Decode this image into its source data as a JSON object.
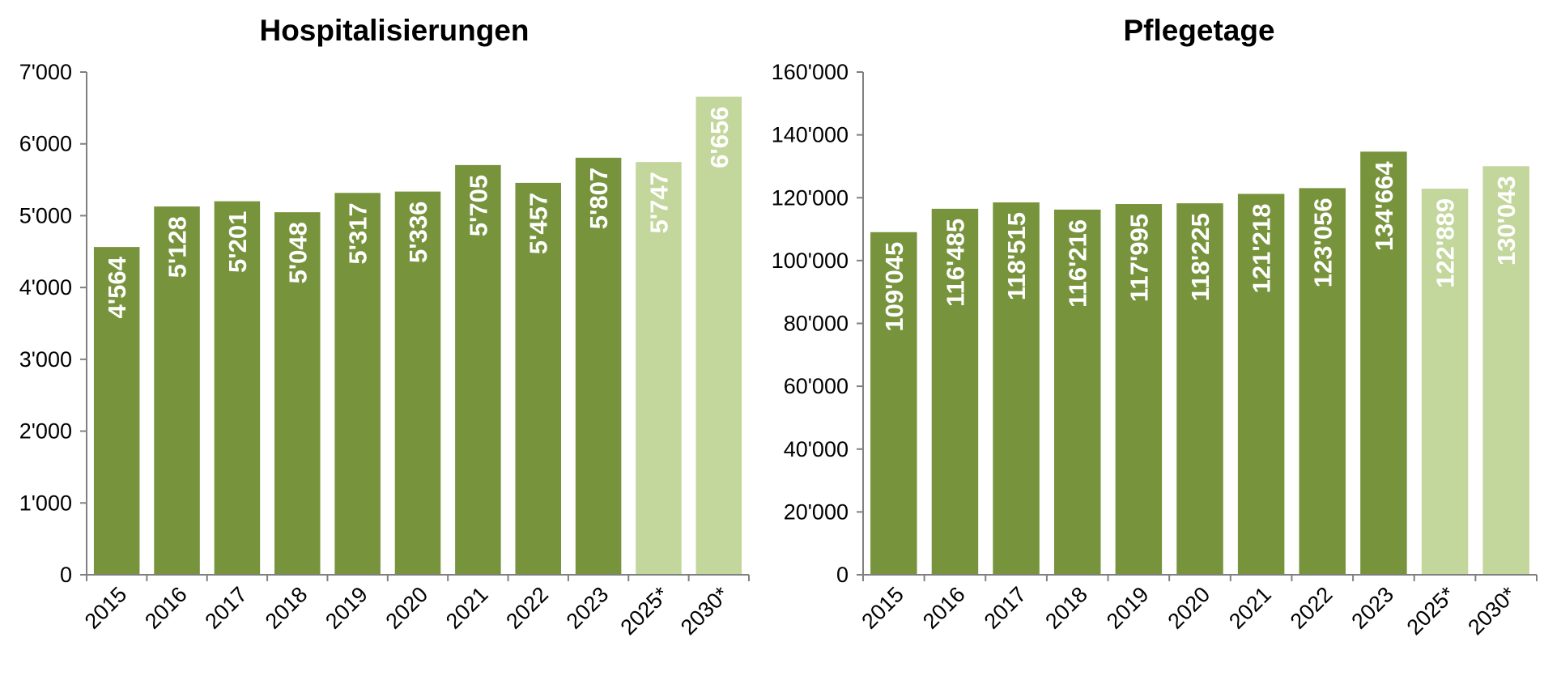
{
  "colors": {
    "actual": "#77933C",
    "forecast": "#C3D69B",
    "label": "#FFFFFF",
    "axis": "#808080"
  },
  "chart_data": [
    {
      "type": "bar",
      "title": "Hospitalisierungen",
      "xlabel": "",
      "ylabel": "",
      "categories": [
        "2015",
        "2016",
        "2017",
        "2018",
        "2019",
        "2020",
        "2021",
        "2022",
        "2023",
        "2025*",
        "2030*"
      ],
      "values": [
        4564,
        5128,
        5201,
        5048,
        5317,
        5336,
        5705,
        5457,
        5807,
        5747,
        6656
      ],
      "value_labels": [
        "4'564",
        "5'128",
        "5'201",
        "5'048",
        "5'317",
        "5'336",
        "5'705",
        "5'457",
        "5'807",
        "5'747",
        "6'656"
      ],
      "forecast": [
        false,
        false,
        false,
        false,
        false,
        false,
        false,
        false,
        false,
        true,
        true
      ],
      "ylim": [
        0,
        7000
      ],
      "yticks": [
        0,
        1000,
        2000,
        3000,
        4000,
        5000,
        6000,
        7000
      ],
      "ytick_labels": [
        "0",
        "1'000",
        "2'000",
        "3'000",
        "4'000",
        "5'000",
        "6'000",
        "7'000"
      ],
      "grid": false,
      "legend": "none"
    },
    {
      "type": "bar",
      "title": "Pflegetage",
      "xlabel": "",
      "ylabel": "",
      "categories": [
        "2015",
        "2016",
        "2017",
        "2018",
        "2019",
        "2020",
        "2021",
        "2022",
        "2023",
        "2025*",
        "2030*"
      ],
      "values": [
        109045,
        116485,
        118515,
        116216,
        117995,
        118225,
        121218,
        123056,
        134664,
        122889,
        130043
      ],
      "value_labels": [
        "109'045",
        "116'485",
        "118'515",
        "116'216",
        "117'995",
        "118'225",
        "121'218",
        "123'056",
        "134'664",
        "122'889",
        "130'043"
      ],
      "forecast": [
        false,
        false,
        false,
        false,
        false,
        false,
        false,
        false,
        false,
        true,
        true
      ],
      "ylim": [
        0,
        160000
      ],
      "yticks": [
        0,
        20000,
        40000,
        60000,
        80000,
        100000,
        120000,
        140000,
        160000
      ],
      "ytick_labels": [
        "0",
        "20'000",
        "40'000",
        "60'000",
        "80'000",
        "100'000",
        "120'000",
        "140'000",
        "160'000"
      ],
      "grid": false,
      "legend": "none"
    }
  ]
}
